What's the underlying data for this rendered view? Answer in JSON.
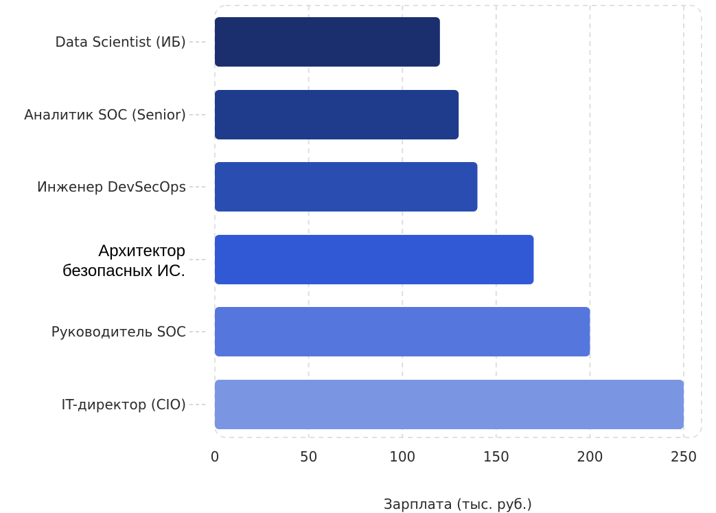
{
  "chart_data": {
    "type": "bar",
    "orientation": "horizontal",
    "categories": [
      "Data Scientist (ИБ)",
      "Аналитик SOC (Senior)",
      "Инженер DevSecOps",
      "Архитектор безопасных ИС.",
      "Руководитель SOC",
      "IT-директор (CIO)"
    ],
    "values": [
      120,
      130,
      140,
      170,
      200,
      250
    ],
    "colors": [
      "#1b2f6e",
      "#1f3b8c",
      "#2a4db1",
      "#3159d6",
      "#5577dd",
      "#7a96e3"
    ],
    "xlabel": "Зарплата (тыс. руб.)",
    "ylabel": "",
    "title": "",
    "xlim": [
      0,
      250
    ],
    "xticks": [
      "0",
      "50",
      "100",
      "150",
      "200",
      "250"
    ],
    "grid": true
  }
}
